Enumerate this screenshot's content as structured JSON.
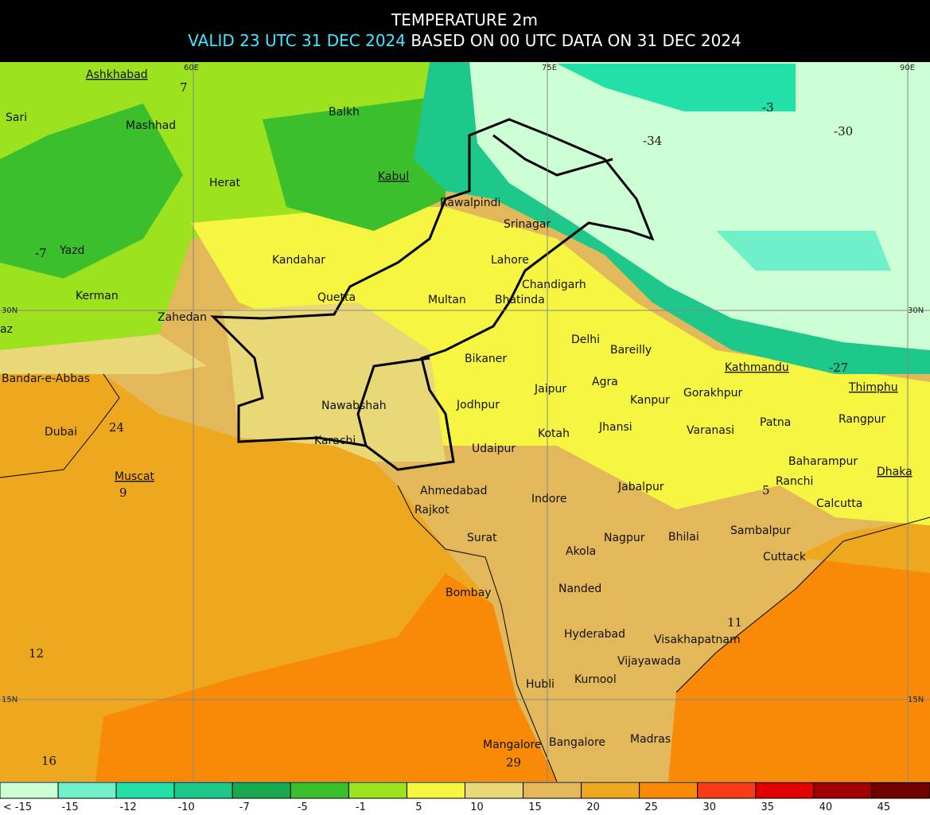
{
  "header": {
    "title": "TEMPERATURE 2m",
    "valid": "VALID 23 UTC 31 DEC 2024",
    "based": "BASED ON 00 UTC DATA ON 31 DEC 2024"
  },
  "grid_labels": [
    "60E",
    "75E",
    "90E",
    "30N",
    "30N",
    "15N",
    "15N"
  ],
  "cities": [
    "Ashkhabad",
    "Sari",
    "Mashhad",
    "Balkh",
    "Herat",
    "Kabul",
    "Rawalpindi",
    "Srinagar",
    "Kandahar",
    "Yazd",
    "Lahore",
    "Chandigarh",
    "Quetta",
    "Multan",
    "Bhatinda",
    "Kerman",
    "Zahedan",
    "az",
    "Delhi",
    "Bareilly",
    "Kathmandu",
    "Thimphu",
    "Bikaner",
    "Bandar-e-Abbas",
    "Jaipur",
    "Agra",
    "Gorakhpur",
    "Kanpur",
    "Jodhpur",
    "Nawabshah",
    "Rangpur",
    "Dubai",
    "Patna",
    "Jhansi",
    "Varanasi",
    "Kotah",
    "Karachi",
    "Udaipur",
    "Baharampur",
    "Muscat",
    "Dhaka",
    "Ranchi",
    "Ahmedabad",
    "Indore",
    "Jabalpur",
    "Calcutta",
    "Rajkot",
    "Sambalpur",
    "Nagpur",
    "Bhilai",
    "Surat",
    "Akola",
    "Cuttack",
    "Nanded",
    "Bombay",
    "Hyderabad",
    "Visakhapatnam",
    "Vijayawada",
    "Kurnool",
    "Hubli",
    "Mangalore",
    "Bangalore",
    "Madras"
  ],
  "temperatures": [
    "7",
    "-3",
    "-30",
    "-34",
    "-7",
    "24",
    "9",
    "12",
    "16",
    "-27",
    "5",
    "11",
    "29"
  ],
  "legend": {
    "labels": [
      "< -15",
      "-15",
      "-12",
      "-10",
      "-7",
      "-5",
      "-1",
      "5",
      "10",
      "15",
      "20",
      "25",
      "30",
      "35",
      "40",
      "45"
    ],
    "colors": [
      "#ccffd4",
      "#70f0c8",
      "#22e0a8",
      "#1ec88a",
      "#19a850",
      "#3cbf2c",
      "#9ce21e",
      "#f5f542",
      "#e8d878",
      "#e2b85a",
      "#eea820",
      "#f88a08",
      "#f83c18",
      "#e00000",
      "#a00000",
      "#700000"
    ]
  }
}
